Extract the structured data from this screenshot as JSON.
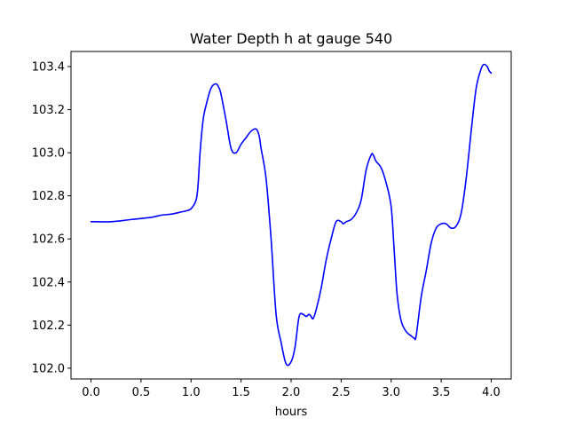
{
  "chart_data": {
    "type": "line",
    "title": "Water Depth h at gauge 540",
    "xlabel": "hours",
    "ylabel": "",
    "xlim": [
      -0.2,
      4.2
    ],
    "ylim": [
      101.95,
      103.47
    ],
    "x_ticks": [
      0.0,
      0.5,
      1.0,
      1.5,
      2.0,
      2.5,
      3.0,
      3.5,
      4.0
    ],
    "x_tick_labels": [
      "0.0",
      "0.5",
      "1.0",
      "1.5",
      "2.0",
      "2.5",
      "3.0",
      "3.5",
      "4.0"
    ],
    "y_ticks": [
      102.0,
      102.2,
      102.4,
      102.6,
      102.8,
      103.0,
      103.2,
      103.4
    ],
    "y_tick_labels": [
      "102.0",
      "102.2",
      "102.4",
      "102.6",
      "102.8",
      "103.0",
      "103.2",
      "103.4"
    ],
    "grid": false,
    "series": [
      {
        "color": "#0000ff",
        "x": [
          0.0,
          0.2,
          0.4,
          0.6,
          0.7,
          0.8,
          0.9,
          0.95,
          1.0,
          1.05,
          1.07,
          1.09,
          1.12,
          1.15,
          1.2,
          1.25,
          1.28,
          1.3,
          1.35,
          1.4,
          1.45,
          1.5,
          1.55,
          1.6,
          1.65,
          1.68,
          1.7,
          1.75,
          1.8,
          1.85,
          1.9,
          1.95,
          2.0,
          2.04,
          2.08,
          2.12,
          2.15,
          2.18,
          2.2,
          2.22,
          2.25,
          2.3,
          2.35,
          2.4,
          2.45,
          2.5,
          2.52,
          2.55,
          2.6,
          2.65,
          2.7,
          2.75,
          2.8,
          2.82,
          2.85,
          2.9,
          2.95,
          3.0,
          3.03,
          3.06,
          3.1,
          3.15,
          3.2,
          3.23,
          3.25,
          3.3,
          3.35,
          3.4,
          3.45,
          3.5,
          3.55,
          3.6,
          3.65,
          3.7,
          3.75,
          3.8,
          3.85,
          3.9,
          3.93,
          3.96,
          3.98,
          4.0
        ],
        "y": [
          102.68,
          102.68,
          102.69,
          102.7,
          102.71,
          102.715,
          102.725,
          102.73,
          102.74,
          102.78,
          102.85,
          103.0,
          103.15,
          103.22,
          103.3,
          103.32,
          103.3,
          103.27,
          103.15,
          103.02,
          103.0,
          103.04,
          103.07,
          103.1,
          103.11,
          103.08,
          103.02,
          102.88,
          102.6,
          102.25,
          102.12,
          102.02,
          102.03,
          102.1,
          102.24,
          102.25,
          102.24,
          102.25,
          102.24,
          102.23,
          102.27,
          102.37,
          102.5,
          102.6,
          102.68,
          102.68,
          102.67,
          102.68,
          102.69,
          102.72,
          102.78,
          102.92,
          102.99,
          102.99,
          102.96,
          102.93,
          102.86,
          102.75,
          102.55,
          102.34,
          102.22,
          102.17,
          102.15,
          102.14,
          102.15,
          102.33,
          102.45,
          102.58,
          102.65,
          102.67,
          102.67,
          102.65,
          102.66,
          102.72,
          102.88,
          103.1,
          103.3,
          103.39,
          103.41,
          103.4,
          103.38,
          103.37
        ]
      }
    ]
  }
}
